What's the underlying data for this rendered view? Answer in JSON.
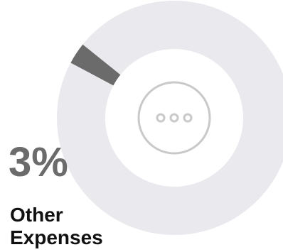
{
  "chart_data": {
    "type": "pie",
    "variant": "donut",
    "slices": [
      {
        "label": "Other Expenses",
        "value": 3,
        "color": "#6b6b6b",
        "highlight": true
      },
      {
        "label": "",
        "value": 97,
        "color": "#e9e9ee",
        "highlight": false
      }
    ]
  },
  "highlight": {
    "percent_text": "3%",
    "label_line1": "Other",
    "label_line2": "Expenses"
  },
  "center_icon": "more-dots-icon",
  "colors": {
    "ring": "#e9e9ee",
    "highlight": "#6b6b6b",
    "icon": "#c9c9c9",
    "label": "#111111"
  }
}
